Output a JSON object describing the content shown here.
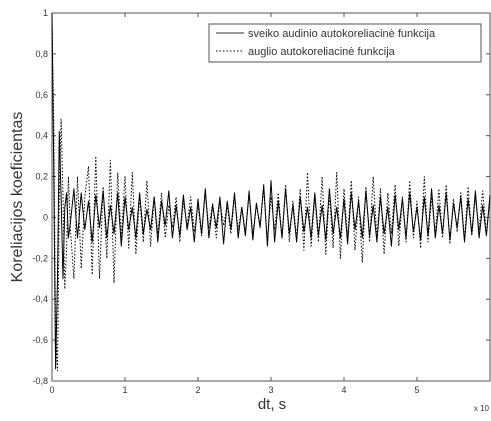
{
  "chart_data": {
    "type": "line",
    "xlabel": "dt, s",
    "ylabel": "Koreliacijos koeficientas",
    "x_exponent_label": "x 10",
    "xlim": [
      0,
      6
    ],
    "ylim": [
      -0.8,
      1
    ],
    "xticks": [
      0,
      1,
      2,
      3,
      4,
      5
    ],
    "yticks": [
      -0.8,
      -0.6,
      -0.4,
      -0.2,
      0,
      0.2,
      0.4,
      0.6,
      0.8,
      1
    ],
    "ytick_labels": [
      "-0,8",
      "-0,6",
      "-0,4",
      "-0,2",
      "0",
      "0,2",
      "0,4",
      "0,6",
      "0,8",
      "1"
    ],
    "xtick_labels": [
      "0",
      "1",
      "2",
      "3",
      "4",
      "5"
    ],
    "grid": false,
    "legend_position": "top-right",
    "series": [
      {
        "name": "sveiko audinio autokoreliacinė funkcija",
        "style": "solid",
        "color": "#000000",
        "x": [
          0,
          0.025,
          0.05,
          0.075,
          0.1,
          0.125,
          0.15,
          0.175,
          0.2,
          0.225,
          0.25,
          0.3,
          0.35,
          0.4,
          0.45,
          0.5,
          0.55,
          0.6,
          0.65,
          0.7,
          0.75,
          0.8,
          0.85,
          0.9,
          0.95,
          1.0,
          1.05,
          1.1,
          1.15,
          1.2,
          1.25,
          1.3,
          1.35,
          1.4,
          1.45,
          1.5,
          1.55,
          1.6,
          1.65,
          1.7,
          1.75,
          1.8,
          1.85,
          1.9,
          1.95,
          2.0,
          2.05,
          2.1,
          2.15,
          2.2,
          2.25,
          2.3,
          2.35,
          2.4,
          2.45,
          2.5,
          2.55,
          2.6,
          2.65,
          2.7,
          2.75,
          2.8,
          2.85,
          2.9,
          2.95,
          3.0,
          3.05,
          3.1,
          3.15,
          3.2,
          3.25,
          3.3,
          3.35,
          3.4,
          3.45,
          3.5,
          3.55,
          3.6,
          3.65,
          3.7,
          3.75,
          3.8,
          3.85,
          3.9,
          3.95,
          4.0,
          4.05,
          4.1,
          4.15,
          4.2,
          4.25,
          4.3,
          4.35,
          4.4,
          4.45,
          4.5,
          4.55,
          4.6,
          4.65,
          4.7,
          4.75,
          4.8,
          4.85,
          4.9,
          4.95,
          5.0,
          5.05,
          5.1,
          5.15,
          5.2,
          5.25,
          5.3,
          5.35,
          5.4,
          5.45,
          5.5,
          5.55,
          5.6,
          5.65,
          5.7,
          5.75,
          5.8,
          5.85,
          5.9,
          5.95,
          6.0
        ],
        "y": [
          1.0,
          0.2,
          -0.74,
          -0.3,
          0.42,
          0.1,
          -0.3,
          0.05,
          0.12,
          -0.1,
          -0.03,
          0.14,
          -0.1,
          0.12,
          -0.06,
          0.08,
          -0.12,
          0.11,
          -0.05,
          0.13,
          -0.1,
          0.06,
          -0.08,
          0.12,
          -0.14,
          0.1,
          -0.06,
          0.05,
          -0.1,
          0.12,
          -0.08,
          0.04,
          -0.06,
          0.1,
          -0.12,
          0.08,
          -0.04,
          0.13,
          -0.1,
          0.06,
          -0.09,
          0.11,
          -0.06,
          0.05,
          -0.12,
          0.09,
          -0.08,
          0.14,
          -0.1,
          0.06,
          -0.05,
          0.1,
          -0.13,
          0.08,
          -0.06,
          0.12,
          -0.1,
          0.05,
          -0.09,
          0.13,
          -0.11,
          0.07,
          -0.05,
          0.16,
          -0.14,
          0.18,
          -0.12,
          0.08,
          -0.1,
          0.14,
          -0.08,
          0.06,
          -0.12,
          0.1,
          -0.07,
          0.05,
          -0.1,
          0.12,
          -0.09,
          0.06,
          -0.11,
          0.14,
          -0.08,
          0.05,
          -0.1,
          0.09,
          -0.13,
          0.12,
          -0.06,
          0.08,
          -0.1,
          0.13,
          -0.09,
          0.06,
          -0.12,
          0.1,
          -0.08,
          0.05,
          -0.14,
          0.11,
          -0.06,
          0.09,
          -0.1,
          0.12,
          -0.07,
          0.05,
          -0.11,
          0.1,
          -0.09,
          0.14,
          -0.1,
          0.06,
          -0.08,
          0.12,
          -0.11,
          0.07,
          -0.05,
          0.1,
          -0.12,
          0.09,
          -0.08,
          0.13,
          -0.1,
          0.06,
          -0.09,
          0.11
        ]
      },
      {
        "name": "auglio autokoreliacinė funkcija",
        "style": "dotted",
        "color": "#000000",
        "x": [
          0,
          0.025,
          0.05,
          0.075,
          0.1,
          0.125,
          0.15,
          0.175,
          0.2,
          0.225,
          0.25,
          0.3,
          0.35,
          0.4,
          0.45,
          0.5,
          0.55,
          0.6,
          0.65,
          0.7,
          0.75,
          0.8,
          0.85,
          0.9,
          0.95,
          1.0,
          1.05,
          1.1,
          1.15,
          1.2,
          1.25,
          1.3,
          1.35,
          1.4,
          1.45,
          1.5,
          1.55,
          1.6,
          1.65,
          1.7,
          1.75,
          1.8,
          1.85,
          1.9,
          1.95,
          2.0,
          2.05,
          2.1,
          2.15,
          2.2,
          2.25,
          2.3,
          2.35,
          2.4,
          2.45,
          2.5,
          2.55,
          2.6,
          2.65,
          2.7,
          2.75,
          2.8,
          2.85,
          2.9,
          2.95,
          3.0,
          3.05,
          3.1,
          3.15,
          3.2,
          3.25,
          3.3,
          3.35,
          3.4,
          3.45,
          3.5,
          3.55,
          3.6,
          3.65,
          3.7,
          3.75,
          3.8,
          3.85,
          3.9,
          3.95,
          4.0,
          4.05,
          4.1,
          4.15,
          4.2,
          4.25,
          4.3,
          4.35,
          4.4,
          4.45,
          4.5,
          4.55,
          4.6,
          4.65,
          4.7,
          4.75,
          4.8,
          4.85,
          4.9,
          4.95,
          5.0,
          5.05,
          5.1,
          5.15,
          5.2,
          5.25,
          5.3,
          5.35,
          5.4,
          5.45,
          5.5,
          5.55,
          5.6,
          5.65,
          5.7,
          5.75,
          5.8,
          5.85,
          5.9,
          5.95,
          6.0
        ],
        "y": [
          0.98,
          0.45,
          -0.55,
          -0.75,
          0.1,
          0.48,
          0.1,
          -0.35,
          -0.15,
          0.2,
          -0.05,
          -0.3,
          0.2,
          -0.25,
          0.1,
          0.25,
          -0.28,
          0.3,
          -0.3,
          0.15,
          -0.2,
          0.28,
          -0.32,
          0.22,
          -0.1,
          0.2,
          -0.15,
          0.22,
          -0.18,
          0.1,
          -0.12,
          0.18,
          -0.14,
          0.1,
          -0.08,
          0.12,
          -0.1,
          0.06,
          -0.05,
          0.1,
          -0.12,
          0.08,
          -0.04,
          0.1,
          -0.07,
          0.06,
          -0.09,
          0.12,
          -0.05,
          0.07,
          -0.1,
          0.08,
          -0.04,
          0.06,
          -0.08,
          0.1,
          -0.06,
          0.05,
          -0.07,
          0.11,
          -0.08,
          0.06,
          -0.04,
          0.14,
          -0.12,
          0.1,
          -0.06,
          0.12,
          -0.1,
          0.16,
          -0.12,
          0.08,
          -0.1,
          0.14,
          -0.16,
          0.22,
          -0.14,
          0.1,
          -0.12,
          0.2,
          -0.18,
          0.12,
          -0.15,
          0.22,
          -0.2,
          0.14,
          -0.1,
          0.18,
          -0.16,
          0.1,
          -0.22,
          0.15,
          -0.12,
          0.2,
          -0.1,
          0.14,
          -0.18,
          0.12,
          -0.08,
          0.16,
          -0.14,
          0.1,
          -0.12,
          0.18,
          -0.1,
          0.08,
          -0.15,
          0.2,
          -0.12,
          0.1,
          -0.08,
          0.14,
          -0.1,
          0.16,
          -0.13,
          0.09,
          -0.07,
          0.12,
          -0.11,
          0.15,
          -0.09,
          0.1,
          -0.06,
          0.13,
          -0.08,
          0.1
        ]
      }
    ]
  }
}
